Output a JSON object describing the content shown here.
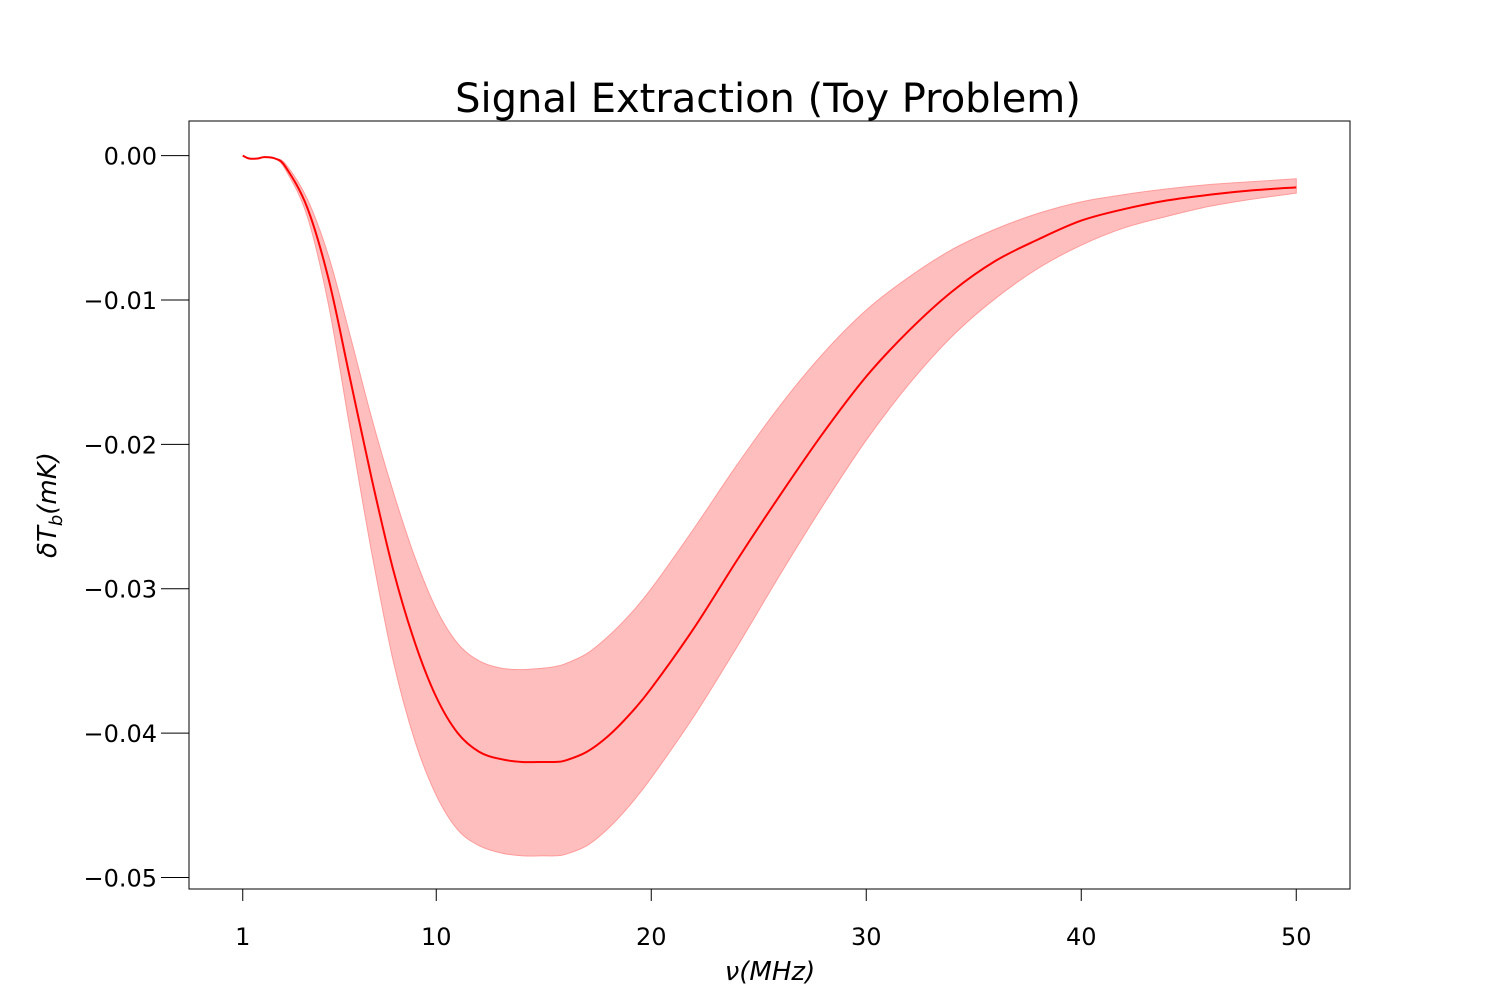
{
  "chart_data": {
    "type": "area",
    "title": "Signal Extraction (Toy Problem)",
    "xlabel": "ν(MHz)",
    "ylabel": "δT_b(mK)",
    "xlim": [
      -1.5,
      52.5
    ],
    "ylim": [
      -0.0508,
      0.0024
    ],
    "xticks": [
      1,
      10,
      20,
      30,
      40,
      50
    ],
    "xtick_labels": [
      "1",
      "10",
      "20",
      "30",
      "40",
      "50"
    ],
    "yticks": [
      0.0,
      -0.01,
      -0.02,
      -0.03,
      -0.04,
      -0.05
    ],
    "ytick_labels": [
      "0.00",
      "−0.01",
      "−0.02",
      "−0.03",
      "−0.04",
      "−0.05"
    ],
    "grid": false,
    "colors": {
      "line": "#ff0000",
      "band": "#ffb3b3"
    },
    "series": [
      {
        "x": [
          1,
          1.3,
          1.7,
          2.0,
          2.5,
          3,
          4,
          5,
          6,
          7,
          8,
          9,
          10,
          11,
          12,
          13,
          14,
          15,
          15.5,
          16,
          17,
          18,
          19,
          20,
          22,
          24,
          26,
          28,
          30,
          32,
          34,
          36,
          38,
          40,
          42,
          44,
          46,
          48,
          50
        ],
        "mean": [
          0.0,
          -0.0002,
          -0.0002,
          -0.0001,
          -0.0002,
          -0.0008,
          -0.0036,
          -0.0086,
          -0.0155,
          -0.0224,
          -0.0287,
          -0.0337,
          -0.0375,
          -0.04,
          -0.0413,
          -0.0418,
          -0.042,
          -0.042,
          -0.042,
          -0.0419,
          -0.0413,
          -0.0402,
          -0.0387,
          -0.0369,
          -0.0327,
          -0.028,
          -0.0235,
          -0.0192,
          -0.0153,
          -0.0121,
          -0.0094,
          -0.0073,
          -0.0058,
          -0.0045,
          -0.0037,
          -0.0031,
          -0.0027,
          -0.0024,
          -0.0022
        ],
        "upper": [
          0.0,
          -0.0002,
          -0.0002,
          -0.0001,
          -0.0002,
          -0.0006,
          -0.003,
          -0.007,
          -0.0125,
          -0.0182,
          -0.0233,
          -0.0278,
          -0.0314,
          -0.0338,
          -0.035,
          -0.0355,
          -0.0356,
          -0.0355,
          -0.0354,
          -0.0352,
          -0.0345,
          -0.0333,
          -0.0318,
          -0.03,
          -0.0258,
          -0.0214,
          -0.0173,
          -0.0137,
          -0.0107,
          -0.0084,
          -0.0065,
          -0.0051,
          -0.004,
          -0.0032,
          -0.0027,
          -0.0023,
          -0.002,
          -0.0018,
          -0.0016
        ],
        "lower": [
          0.0,
          -0.0002,
          -0.0002,
          -0.0001,
          -0.0002,
          -0.001,
          -0.0042,
          -0.0104,
          -0.019,
          -0.0275,
          -0.035,
          -0.0405,
          -0.0443,
          -0.0467,
          -0.0478,
          -0.0483,
          -0.0485,
          -0.0485,
          -0.0485,
          -0.0484,
          -0.0478,
          -0.0466,
          -0.045,
          -0.0431,
          -0.0388,
          -0.034,
          -0.029,
          -0.0242,
          -0.0197,
          -0.0158,
          -0.0125,
          -0.0099,
          -0.0078,
          -0.0062,
          -0.005,
          -0.0042,
          -0.0035,
          -0.003,
          -0.0026
        ]
      }
    ]
  }
}
